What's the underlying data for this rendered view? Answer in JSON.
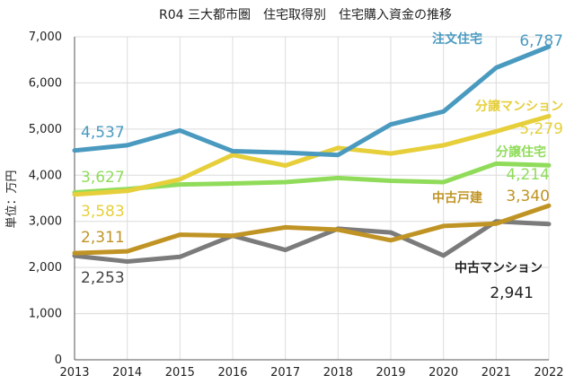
{
  "chart_data": {
    "type": "line",
    "title": "R04 三大都市圏　住宅取得別　住宅購入資金の推移",
    "ylabel": "単位：万円",
    "xlabel": "",
    "x": [
      "2013",
      "2014",
      "2015",
      "2016",
      "2017",
      "2018",
      "2019",
      "2020",
      "2021",
      "2022"
    ],
    "ylim": [
      0,
      7000
    ],
    "yticks": [
      0,
      1000,
      2000,
      3000,
      4000,
      5000,
      6000,
      7000
    ],
    "ytick_labels": [
      "0",
      "1,000",
      "2,000",
      "3,000",
      "4,000",
      "5,000",
      "6,000",
      "7,000"
    ],
    "grid": true,
    "series": [
      {
        "name": "注文住宅",
        "color": "#4a9ac0",
        "values": [
          4537,
          4650,
          4970,
          4520,
          4490,
          4440,
          5100,
          5380,
          6330,
          6787
        ],
        "labels": [
          {
            "i": 0,
            "text": "4,537"
          },
          {
            "i": 9,
            "text": "6,787"
          }
        ]
      },
      {
        "name": "分譲マンション",
        "color": "#e6cf3a",
        "values": [
          3583,
          3660,
          3910,
          4440,
          4210,
          4590,
          4470,
          4650,
          4950,
          5279
        ],
        "labels": [
          {
            "i": 0,
            "text": "3,583"
          },
          {
            "i": 9,
            "text": "5,279"
          }
        ]
      },
      {
        "name": "分譲住宅",
        "color": "#90dc5a",
        "values": [
          3627,
          3700,
          3800,
          3820,
          3850,
          3940,
          3880,
          3850,
          4250,
          4214
        ],
        "labels": [
          {
            "i": 0,
            "text": "3,627"
          },
          {
            "i": 9,
            "text": "4,214"
          }
        ]
      },
      {
        "name": "中古戸建",
        "color": "#c09424",
        "values": [
          2311,
          2350,
          2710,
          2690,
          2870,
          2820,
          2590,
          2900,
          2950,
          3340
        ],
        "labels": [
          {
            "i": 0,
            "text": "2,311"
          },
          {
            "i": 9,
            "text": "3,340"
          }
        ]
      },
      {
        "name": "中古マンション",
        "color": "#7b7b7b",
        "values": [
          2253,
          2130,
          2230,
          2690,
          2380,
          2840,
          2760,
          2260,
          3000,
          2941
        ],
        "labels": [
          {
            "i": 0,
            "text": "2,253"
          },
          {
            "i": 9,
            "text": "2,941"
          }
        ]
      }
    ]
  }
}
